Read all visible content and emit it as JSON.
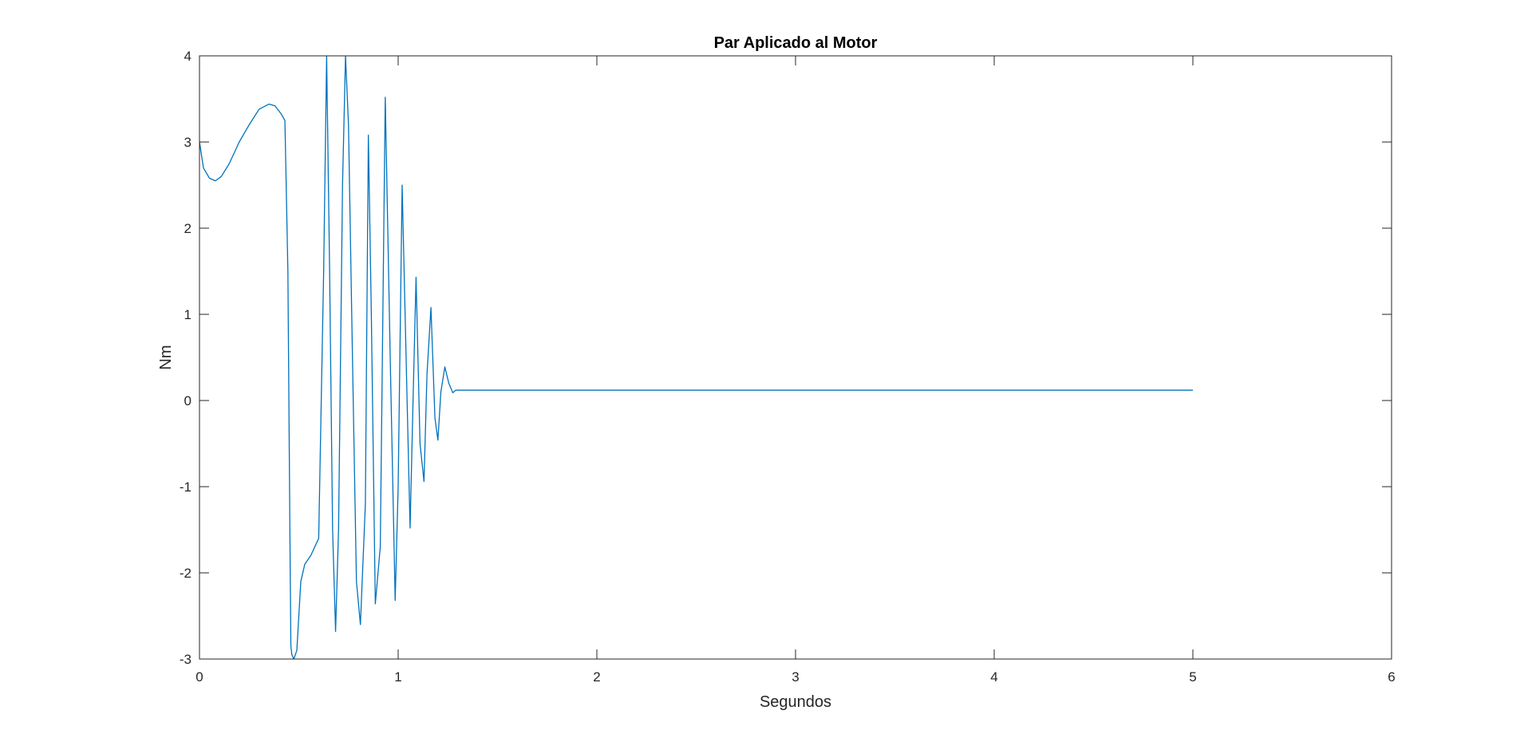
{
  "chart_data": {
    "type": "line",
    "title": "Par Aplicado al Motor",
    "xlabel": "Segundos",
    "ylabel": "Nm",
    "xlim": [
      0,
      6
    ],
    "ylim": [
      -3,
      4
    ],
    "xticks": [
      "0",
      "1",
      "2",
      "3",
      "4",
      "5",
      "6"
    ],
    "yticks": [
      "-3",
      "-2",
      "-1",
      "0",
      "1",
      "2",
      "3",
      "4"
    ],
    "grid": false,
    "line_color": "#0072BD",
    "series": [
      {
        "x": [
          0,
          0.02,
          0.05,
          0.08,
          0.11,
          0.15,
          0.2,
          0.25,
          0.3,
          0.35,
          0.38,
          0.41,
          0.43,
          0.445,
          0.455,
          0.46,
          0.465,
          0.475,
          0.49,
          0.5,
          0.51,
          0.53,
          0.56,
          0.6,
          0.6,
          0.625,
          0.64,
          0.655,
          0.67,
          0.685,
          0.7,
          0.72,
          0.735,
          0.75,
          0.77,
          0.79,
          0.81,
          0.835,
          0.85,
          0.865,
          0.885,
          0.91,
          0.935,
          0.96,
          0.985,
          1.0,
          1.02,
          1.045,
          1.06,
          1.075,
          1.09,
          1.11,
          1.13,
          1.145,
          1.165,
          1.185,
          1.2,
          1.215,
          1.235,
          1.255,
          1.275,
          1.29,
          1.31,
          1.34,
          1.4,
          1.5,
          1.7,
          2.0,
          2.5,
          3.0,
          3.5,
          4.0,
          4.5,
          5.0
        ],
        "y": [
          3.0,
          2.7,
          2.58,
          2.55,
          2.6,
          2.75,
          3.0,
          3.2,
          3.38,
          3.44,
          3.42,
          3.33,
          3.25,
          1.5,
          -1.5,
          -2.85,
          -2.95,
          -3.0,
          -2.9,
          -2.5,
          -2.1,
          -1.9,
          -1.8,
          -1.6,
          -1.6,
          1.5,
          4.0,
          1.5,
          -1.5,
          -2.68,
          -1.5,
          2.5,
          4.0,
          3.2,
          0.5,
          -2.1,
          -2.6,
          -1.2,
          3.08,
          1.0,
          -2.36,
          -1.7,
          3.52,
          0.5,
          -2.32,
          -1.0,
          2.5,
          0.0,
          -1.48,
          0.0,
          1.43,
          -0.5,
          -0.94,
          0.3,
          1.08,
          -0.2,
          -0.46,
          0.1,
          0.39,
          0.2,
          0.09,
          0.12,
          0.12,
          0.12,
          0.12,
          0.12,
          0.12,
          0.12,
          0.12,
          0.12,
          0.12,
          0.12,
          0.12,
          0.12
        ]
      }
    ]
  }
}
